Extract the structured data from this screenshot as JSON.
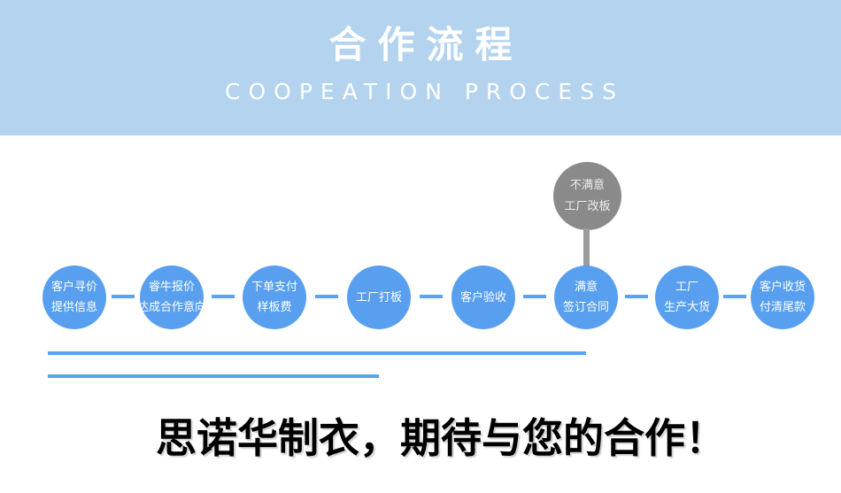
{
  "header": {
    "title": "合作流程",
    "subtitle": "COOPEATION PROCESS",
    "bg_color": "#b3d3ee",
    "text_color": "#ffffff"
  },
  "flow": {
    "circle_color": "#58a0ef",
    "connector_color": "#5ba2f0",
    "steps": [
      {
        "lines": [
          "客户寻价",
          "提供信息"
        ]
      },
      {
        "lines": [
          "睿牛报价",
          "达成合作意向"
        ]
      },
      {
        "lines": [
          "下单支付",
          "样板费"
        ]
      },
      {
        "lines": [
          "工厂打板"
        ]
      },
      {
        "lines": [
          "客户验收"
        ]
      },
      {
        "lines": [
          "满意",
          "签订合同"
        ]
      },
      {
        "lines": [
          "工厂",
          "生产大货"
        ]
      },
      {
        "lines": [
          "客户收货",
          "付清尾款"
        ]
      }
    ],
    "branch": {
      "lines": [
        "不满意",
        "工厂改板"
      ],
      "attached_to_step_index": 5,
      "circle_color": "#8a8a8a",
      "line_color": "#9c9c9c"
    }
  },
  "decor": {
    "underline_color": "#5ba2f0"
  },
  "footer": {
    "slogan": "思诺华制衣，期待与您的合作！"
  }
}
